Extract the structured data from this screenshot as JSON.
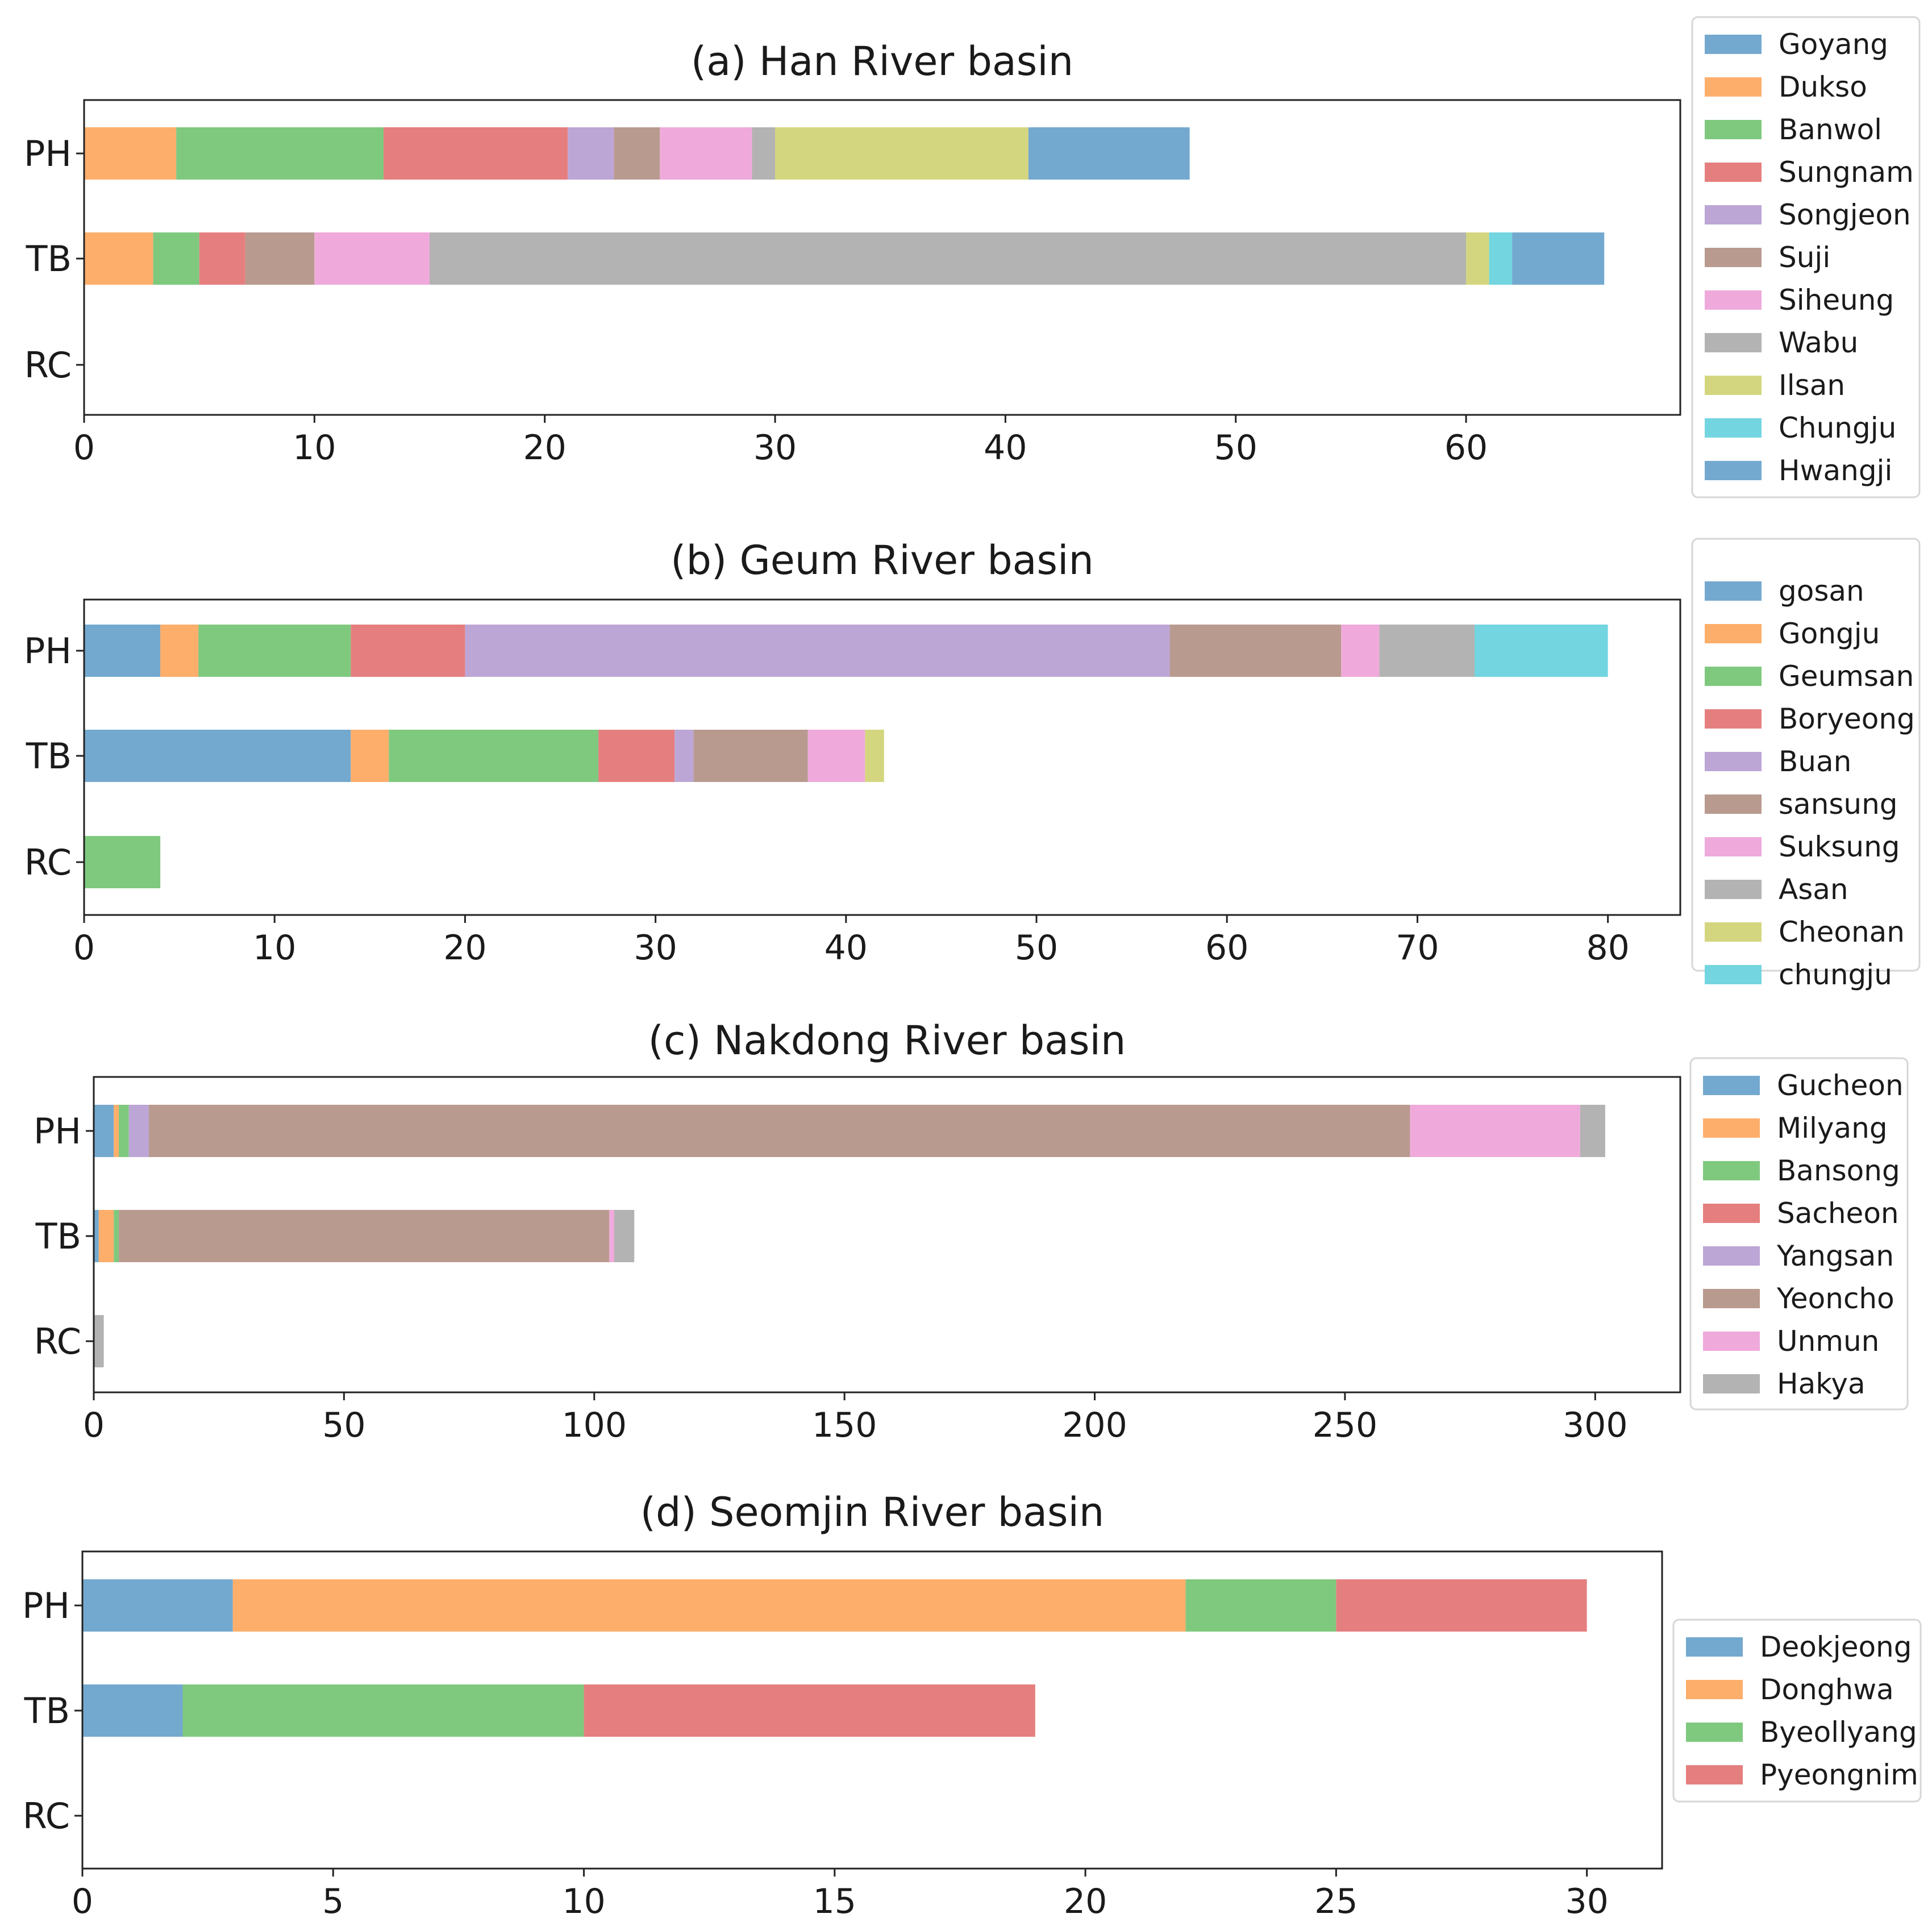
{
  "chart_data": [
    {
      "type": "bar",
      "orientation": "horizontal",
      "stacked": true,
      "title": "(a) Han River basin",
      "categories": [
        "PH",
        "TB",
        "RC"
      ],
      "xlim": [
        0,
        69.3
      ],
      "xticks": [
        0,
        10,
        20,
        30,
        40,
        50,
        60
      ],
      "xtick_labels": [
        "0",
        "10",
        "20",
        "30",
        "40",
        "50",
        "60"
      ],
      "legend_position": "right",
      "series": [
        {
          "name": "Goyang",
          "color": "#74a9cf",
          "values": [
            0,
            0,
            0
          ]
        },
        {
          "name": "Dukso",
          "color": "#fdae6b",
          "values": [
            4,
            3,
            0
          ]
        },
        {
          "name": "Banwol",
          "color": "#7fc97f",
          "values": [
            9,
            2,
            0
          ]
        },
        {
          "name": "Sungnam",
          "color": "#e57f7f",
          "values": [
            8,
            2,
            0
          ]
        },
        {
          "name": "Songjeon",
          "color": "#bca6d5",
          "values": [
            2,
            0,
            0
          ]
        },
        {
          "name": "Suji",
          "color": "#b99a8f",
          "values": [
            2,
            3,
            0
          ]
        },
        {
          "name": "Siheung",
          "color": "#efaadb",
          "values": [
            4,
            5,
            0
          ]
        },
        {
          "name": "Wabu",
          "color": "#b3b3b3",
          "values": [
            1,
            45,
            0
          ]
        },
        {
          "name": "Ilsan",
          "color": "#d4d67f",
          "values": [
            11,
            1,
            0
          ]
        },
        {
          "name": "Chungju",
          "color": "#72d5e0",
          "values": [
            0,
            1,
            0
          ]
        },
        {
          "name": "Hwangji",
          "color": "#74a9cf",
          "values": [
            7,
            4,
            0
          ]
        }
      ]
    },
    {
      "type": "bar",
      "orientation": "horizontal",
      "stacked": true,
      "title": "(b) Geum River basin",
      "categories": [
        "PH",
        "TB",
        "RC"
      ],
      "xlim": [
        0,
        83.8
      ],
      "xticks": [
        0,
        10,
        20,
        30,
        40,
        50,
        60,
        70,
        80
      ],
      "xtick_labels": [
        "0",
        "10",
        "20",
        "30",
        "40",
        "50",
        "60",
        "70",
        "80"
      ],
      "legend_position": "right",
      "series": [
        {
          "name": "gosan",
          "color": "#74a9cf",
          "values": [
            4,
            14,
            0
          ]
        },
        {
          "name": "Gongju",
          "color": "#fdae6b",
          "values": [
            2,
            2,
            0
          ]
        },
        {
          "name": "Geumsan",
          "color": "#7fc97f",
          "values": [
            8,
            11,
            4
          ]
        },
        {
          "name": "Boryeong",
          "color": "#e57f7f",
          "values": [
            6,
            4,
            0
          ]
        },
        {
          "name": "Buan",
          "color": "#bca6d5",
          "values": [
            37,
            1,
            0
          ]
        },
        {
          "name": "sansung",
          "color": "#b99a8f",
          "values": [
            9,
            6,
            0
          ]
        },
        {
          "name": "Suksung",
          "color": "#efaadb",
          "values": [
            2,
            3,
            0
          ]
        },
        {
          "name": "Asan",
          "color": "#b3b3b3",
          "values": [
            5,
            0,
            0
          ]
        },
        {
          "name": "Cheonan",
          "color": "#d4d67f",
          "values": [
            0,
            1,
            0
          ]
        },
        {
          "name": "chungju",
          "color": "#72d5e0",
          "values": [
            7,
            0,
            0
          ]
        }
      ]
    },
    {
      "type": "bar",
      "orientation": "horizontal",
      "stacked": true,
      "title": "(c) Nakdong River basin",
      "categories": [
        "PH",
        "TB",
        "RC"
      ],
      "xlim": [
        0,
        317
      ],
      "xticks": [
        0,
        50,
        100,
        150,
        200,
        250,
        300
      ],
      "xtick_labels": [
        "0",
        "50",
        "100",
        "150",
        "200",
        "250",
        "300"
      ],
      "legend_position": "right",
      "series": [
        {
          "name": "Gucheon",
          "color": "#74a9cf",
          "values": [
            4,
            1,
            0
          ]
        },
        {
          "name": "Milyang",
          "color": "#fdae6b",
          "values": [
            1,
            3,
            0
          ]
        },
        {
          "name": "Bansong",
          "color": "#7fc97f",
          "values": [
            2,
            1,
            0
          ]
        },
        {
          "name": "Sacheon",
          "color": "#e57f7f",
          "values": [
            0,
            0,
            0
          ]
        },
        {
          "name": "Yangsan",
          "color": "#bca6d5",
          "values": [
            4,
            0,
            0
          ]
        },
        {
          "name": "Yeoncho",
          "color": "#b99a8f",
          "values": [
            252,
            98,
            0
          ]
        },
        {
          "name": "Unmun",
          "color": "#efaadb",
          "values": [
            34,
            1,
            0
          ]
        },
        {
          "name": "Hakya",
          "color": "#b3b3b3",
          "values": [
            5,
            4,
            2
          ]
        }
      ]
    },
    {
      "type": "bar",
      "orientation": "horizontal",
      "stacked": true,
      "title": "(d) Seomjin River basin",
      "categories": [
        "PH",
        "TB",
        "RC"
      ],
      "xlim": [
        0,
        31.5
      ],
      "xticks": [
        0,
        5,
        10,
        15,
        20,
        25,
        30
      ],
      "xtick_labels": [
        "0",
        "5",
        "10",
        "15",
        "20",
        "25",
        "30"
      ],
      "legend_position": "right",
      "series": [
        {
          "name": "Deokjeong",
          "color": "#74a9cf",
          "values": [
            3,
            2,
            0
          ]
        },
        {
          "name": "Donghwa",
          "color": "#fdae6b",
          "values": [
            19,
            0,
            0
          ]
        },
        {
          "name": "Byeollyang",
          "color": "#7fc97f",
          "values": [
            3,
            8,
            0
          ]
        },
        {
          "name": "Pyeongnim",
          "color": "#e57f7f",
          "values": [
            5,
            9,
            0
          ]
        }
      ]
    }
  ]
}
